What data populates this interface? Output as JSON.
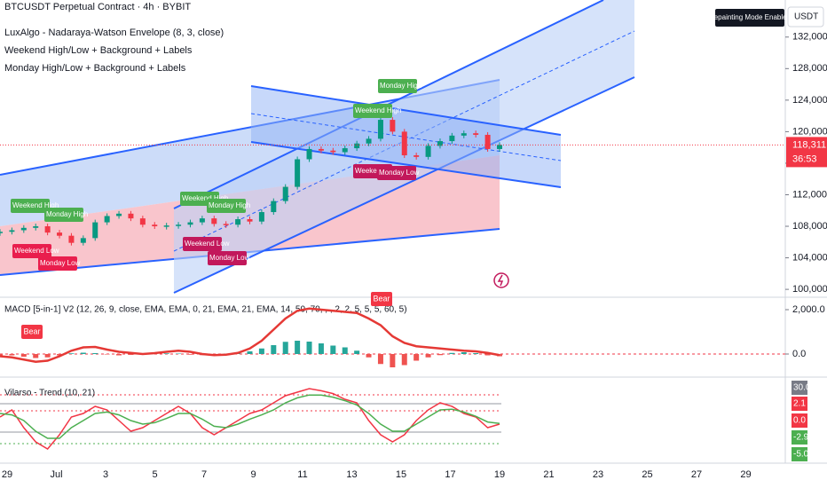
{
  "header": {
    "title": "BTCUSDT Perpetual Contract · 4h · BYBIT",
    "indicators": [
      "LuxAlgo - Nadaraya-Watson Envelope (8, 3, close)",
      "Weekend High/Low + Background + Labels",
      "Monday High/Low + Background + Labels"
    ],
    "badge": "Repainting Mode Enabled",
    "currency": "USDT"
  },
  "chart_data": [
    {
      "type": "candlestick",
      "values": [
        107300,
        107500,
        107800,
        108000,
        107200,
        106800,
        105900,
        106500,
        108500,
        109300,
        109600,
        109000,
        108200,
        108000,
        108100,
        108200,
        108500,
        109000,
        108300,
        108200,
        108900,
        108600,
        109800,
        111200,
        113000,
        116500,
        117800,
        117600,
        117400,
        117900,
        118500,
        119100,
        121500,
        120000,
        117000,
        116800,
        118200,
        118800,
        119500,
        119800,
        119600,
        117800,
        118311.7
      ],
      "up_color": "#089981",
      "down_color": "#f23645",
      "ylim": [
        99000,
        136700
      ],
      "yticks": [
        {
          "value": 100000,
          "label": "100,000.0"
        },
        {
          "value": 104000,
          "label": "104,000.0"
        },
        {
          "value": 108000,
          "label": "108,000.0"
        },
        {
          "value": 112000,
          "label": "112,000.0"
        },
        {
          "value": 116000,
          "label": "116,000.0"
        },
        {
          "value": 120000,
          "label": "120,000.0"
        },
        {
          "value": 124000,
          "label": "124,000.0"
        },
        {
          "value": 128000,
          "label": "128,000.0"
        },
        {
          "value": 132000,
          "label": "132,000.0"
        }
      ],
      "last_price": {
        "value": 118311.7,
        "label": "118,311.7"
      },
      "countdown": "36:53",
      "xticks": [
        "29",
        "Jul",
        "3",
        "5",
        "7",
        "9",
        "11",
        "13",
        "15",
        "17",
        "19",
        "21",
        "23",
        "25",
        "27",
        "29"
      ],
      "annotations": [
        {
          "text": "Weekend High",
          "color": "#4caf50"
        },
        {
          "text": "Monday High",
          "color": "#4caf50"
        },
        {
          "text": "Weekend Low",
          "color": "#e91e4d"
        },
        {
          "text": "Monday Low",
          "color": "#e91e4d"
        },
        {
          "text": "Weekend High",
          "color": "#4caf50"
        },
        {
          "text": "Monday High",
          "color": "#4caf50"
        },
        {
          "text": "Weekend Low",
          "color": "#c2185b"
        },
        {
          "text": "Monday Low",
          "color": "#c2185b"
        },
        {
          "text": "Monday High",
          "color": "#4caf50"
        },
        {
          "text": "Weekend High",
          "color": "#4caf50"
        },
        {
          "text": "Weekend Low",
          "color": "#c2185b"
        },
        {
          "text": "Monday Low",
          "color": "#c2185b"
        }
      ]
    },
    {
      "type": "histogram",
      "title": "MACD [5-in-1] V2 (12, 26, 9, close, EMA, EMA, 0, 21, EMA, 21, EMA, 14, 50, 70, , , 2, 2, 5, 5, 5, 60, 5)",
      "values": [
        -80,
        -60,
        -120,
        -180,
        -150,
        -60,
        30,
        60,
        40,
        -20,
        -60,
        -40,
        -20,
        10,
        30,
        20,
        -30,
        -50,
        -30,
        10,
        40,
        120,
        250,
        400,
        550,
        600,
        560,
        480,
        380,
        300,
        150,
        -150,
        -450,
        -600,
        -500,
        -300,
        -150,
        -50,
        50,
        80,
        40,
        -60,
        -100
      ],
      "line": [
        -100,
        -150,
        -250,
        -350,
        -300,
        -100,
        150,
        300,
        320,
        200,
        100,
        50,
        0,
        40,
        100,
        150,
        100,
        0,
        -50,
        -30,
        50,
        250,
        600,
        1100,
        1600,
        1950,
        2050,
        2000,
        1950,
        1900,
        1850,
        1600,
        1300,
        800,
        500,
        350,
        300,
        250,
        200,
        150,
        120,
        50,
        -50
      ],
      "up_color": "#26a69a",
      "down_color": "#ef5350",
      "line_color": "#e53935",
      "ylim": [
        -1040,
        2560
      ],
      "yticks": [
        {
          "value": 2000,
          "label": "2,000.0"
        },
        {
          "value": 0,
          "label": "0.0"
        }
      ],
      "annotations": [
        "Bear",
        "Bear"
      ]
    },
    {
      "type": "line",
      "title": "Vilarso - Trend (10, 21)",
      "series": [
        {
          "color": "#f23645",
          "values": [
            0.5,
            1.5,
            -1,
            -3,
            -4,
            -2,
            0.5,
            1,
            2,
            1.5,
            0,
            -1.5,
            -1,
            0,
            1,
            2,
            1,
            -1,
            -2,
            -1,
            0,
            1,
            1.5,
            2.5,
            3.5,
            4,
            4.5,
            4.2,
            3.8,
            3,
            2.5,
            0,
            -2,
            -3,
            -2,
            0,
            1.5,
            2.5,
            2,
            1,
            0.5,
            -1,
            -0.5
          ]
        },
        {
          "color": "#4caf50",
          "values": [
            1,
            0.8,
            0,
            -1.5,
            -2.5,
            -2.5,
            -1,
            0,
            1,
            1.2,
            0.8,
            0,
            -0.5,
            -0.3,
            0.3,
            1,
            1,
            0.2,
            -0.8,
            -1,
            -0.5,
            0.2,
            0.8,
            1.5,
            2.5,
            3.2,
            3.6,
            3.6,
            3.3,
            2.8,
            2.2,
            1,
            -0.5,
            -1.5,
            -1.5,
            -0.5,
            0.5,
            1.5,
            1.6,
            1.2,
            0.6,
            -0.2,
            -0.4
          ]
        }
      ],
      "ylim": [
        -5.5,
        5.5
      ],
      "scale_labels": [
        {
          "value": 30,
          "label": "30.0",
          "color": "#787b86"
        },
        {
          "value": 2.1,
          "label": "2.1",
          "color": "#f23645"
        },
        {
          "value": 0,
          "label": "0.0",
          "color": "#f23645"
        },
        {
          "value": -2.9,
          "label": "-2.9",
          "color": "#4caf50"
        },
        {
          "value": -5,
          "label": "-5.0",
          "color": "#4caf50"
        }
      ]
    }
  ]
}
